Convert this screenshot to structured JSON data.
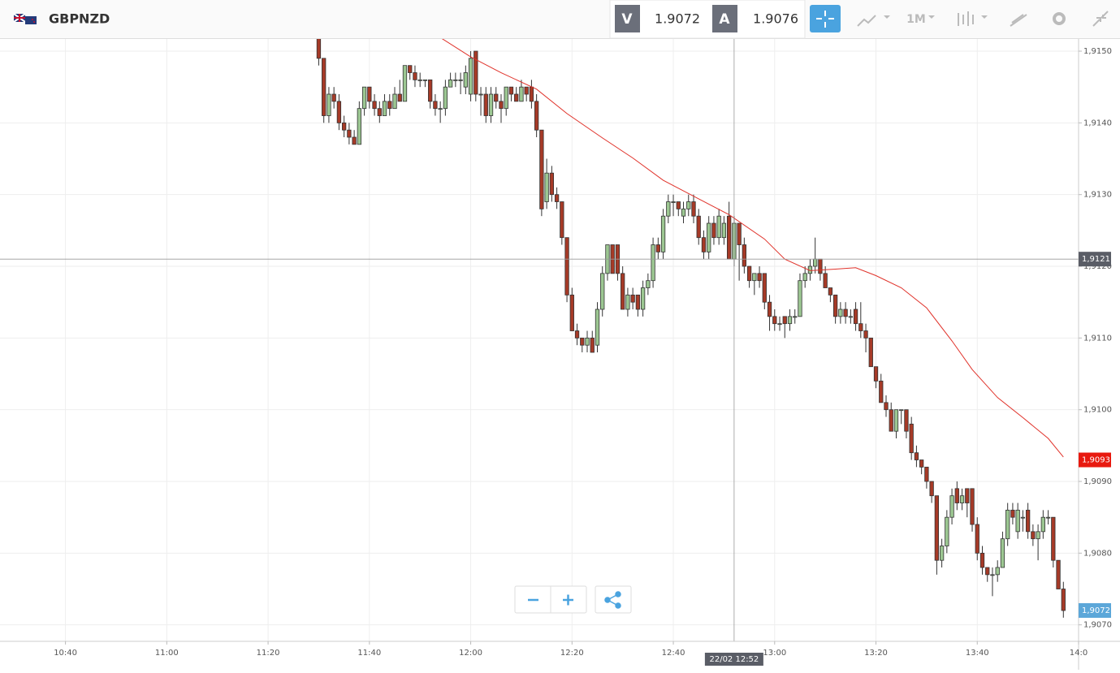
{
  "header": {
    "symbol": "GBPNZD",
    "bid_label": "V",
    "bid": 1.9072,
    "ask_label": "A",
    "ask": 1.9076,
    "timeframe": "1M"
  },
  "chart_data": {
    "type": "candlestick",
    "xlim": [
      629,
      840
    ],
    "xticks": [
      {
        "value": 640,
        "label": "10:40"
      },
      {
        "value": 660,
        "label": "11:00"
      },
      {
        "value": 680,
        "label": "11:20"
      },
      {
        "value": 700,
        "label": "11:40"
      },
      {
        "value": 720,
        "label": "12:00"
      },
      {
        "value": 740,
        "label": "12:20"
      },
      {
        "value": 760,
        "label": "12:40"
      },
      {
        "value": 780,
        "label": "13:00"
      },
      {
        "value": 800,
        "label": "13:20"
      },
      {
        "value": 820,
        "label": "13:40"
      },
      {
        "value": 840,
        "label": "14:0"
      }
    ],
    "ylim": [
      1.90677,
      1.91517
    ],
    "yticks": [
      {
        "value": 1.915,
        "label": "1,9150"
      },
      {
        "value": 1.914,
        "label": "1,9140"
      },
      {
        "value": 1.913,
        "label": "1,9130"
      },
      {
        "value": 1.912,
        "label": "1,9120"
      },
      {
        "value": 1.911,
        "label": "1,9110"
      },
      {
        "value": 1.91,
        "label": "1,9100"
      },
      {
        "value": 1.909,
        "label": "1,9090"
      },
      {
        "value": 1.908,
        "label": "1,9080"
      },
      {
        "value": 1.907,
        "label": "1,9070"
      }
    ],
    "grid": true,
    "up_color": "#9cc792",
    "down_color": "#a63a27",
    "candles": [
      [
        690,
        1.9152,
        1.9153,
        1.9148,
        1.9149
      ],
      [
        691,
        1.9149,
        1.9149,
        1.914,
        1.9141
      ],
      [
        692,
        1.9141,
        1.9145,
        1.914,
        1.9144
      ],
      [
        693,
        1.9144,
        1.9145,
        1.9142,
        1.9143
      ],
      [
        694,
        1.9143,
        1.9144,
        1.9139,
        1.914
      ],
      [
        695,
        1.914,
        1.9141,
        1.9138,
        1.9139
      ],
      [
        696,
        1.9139,
        1.914,
        1.9137,
        1.9138
      ],
      [
        697,
        1.9138,
        1.9139,
        1.9137,
        1.9137
      ],
      [
        698,
        1.9137,
        1.9143,
        1.9137,
        1.9142
      ],
      [
        699,
        1.9142,
        1.9145,
        1.9141,
        1.9145
      ],
      [
        700,
        1.9145,
        1.9145,
        1.9142,
        1.9143
      ],
      [
        701,
        1.9143,
        1.9144,
        1.9141,
        1.9142
      ],
      [
        702,
        1.9142,
        1.9143,
        1.914,
        1.9141
      ],
      [
        703,
        1.9141,
        1.9144,
        1.9141,
        1.9143
      ],
      [
        704,
        1.9143,
        1.9144,
        1.9141,
        1.9142
      ],
      [
        705,
        1.9142,
        1.9145,
        1.9142,
        1.9144
      ],
      [
        706,
        1.9144,
        1.9146,
        1.9143,
        1.9143
      ],
      [
        707,
        1.9143,
        1.9148,
        1.9143,
        1.9148
      ],
      [
        708,
        1.9148,
        1.9148,
        1.9146,
        1.9147
      ],
      [
        709,
        1.9147,
        1.9148,
        1.9145,
        1.9146
      ],
      [
        710,
        1.9146,
        1.9147,
        1.9145,
        1.9146
      ],
      [
        711,
        1.9146,
        1.9146,
        1.9145,
        1.9146
      ],
      [
        712,
        1.9146,
        1.9146,
        1.9142,
        1.9143
      ],
      [
        713,
        1.9143,
        1.9144,
        1.9141,
        1.9142
      ],
      [
        714,
        1.9142,
        1.9143,
        1.914,
        1.9142
      ],
      [
        715,
        1.9142,
        1.9146,
        1.9141,
        1.9145
      ],
      [
        716,
        1.9145,
        1.9147,
        1.9145,
        1.9146
      ],
      [
        717,
        1.9146,
        1.9147,
        1.9145,
        1.9146
      ],
      [
        718,
        1.9146,
        1.9147,
        1.9144,
        1.9146
      ],
      [
        719,
        1.9145,
        1.9148,
        1.9144,
        1.9147
      ],
      [
        720,
        1.9144,
        1.915,
        1.9143,
        1.9149
      ],
      [
        721,
        1.915,
        1.915,
        1.9143,
        1.9144
      ],
      [
        722,
        1.9144,
        1.9145,
        1.9141,
        1.9144
      ],
      [
        723,
        1.9144,
        1.9145,
        1.914,
        1.9141
      ],
      [
        724,
        1.9141,
        1.9145,
        1.914,
        1.9144
      ],
      [
        725,
        1.9144,
        1.9145,
        1.9142,
        1.9143
      ],
      [
        726,
        1.9143,
        1.9144,
        1.914,
        1.9142
      ],
      [
        727,
        1.9142,
        1.9145,
        1.9141,
        1.9145
      ],
      [
        728,
        1.9145,
        1.9145,
        1.9143,
        1.9144
      ],
      [
        729,
        1.9144,
        1.9145,
        1.9143,
        1.9143
      ],
      [
        730,
        1.9143,
        1.9146,
        1.9143,
        1.9145
      ],
      [
        731,
        1.9145,
        1.9145,
        1.9143,
        1.9144
      ],
      [
        732,
        1.9145,
        1.9146,
        1.9142,
        1.9143
      ],
      [
        733,
        1.9143,
        1.9144,
        1.9138,
        1.9139
      ],
      [
        734,
        1.9139,
        1.9139,
        1.9127,
        1.9128
      ],
      [
        735,
        1.9129,
        1.9135,
        1.9128,
        1.9133
      ],
      [
        736,
        1.9133,
        1.9134,
        1.9129,
        1.913
      ],
      [
        737,
        1.913,
        1.9131,
        1.9128,
        1.9129
      ],
      [
        738,
        1.9129,
        1.9129,
        1.9123,
        1.9124
      ],
      [
        739,
        1.9124,
        1.9124,
        1.9115,
        1.9116
      ],
      [
        740,
        1.9116,
        1.9117,
        1.9111,
        1.9111
      ],
      [
        741,
        1.9111,
        1.9112,
        1.9109,
        1.911
      ],
      [
        742,
        1.911,
        1.911,
        1.9108,
        1.9109
      ],
      [
        743,
        1.9109,
        1.9111,
        1.9108,
        1.911
      ],
      [
        744,
        1.911,
        1.9111,
        1.9108,
        1.9108
      ],
      [
        745,
        1.9109,
        1.9115,
        1.9108,
        1.9114
      ],
      [
        746,
        1.9114,
        1.912,
        1.9113,
        1.9119
      ],
      [
        747,
        1.9119,
        1.9123,
        1.9118,
        1.9123
      ],
      [
        748,
        1.9123,
        1.9123,
        1.9119,
        1.9119
      ],
      [
        749,
        1.9123,
        1.9123,
        1.9118,
        1.9119
      ],
      [
        750,
        1.9119,
        1.912,
        1.9114,
        1.9114
      ],
      [
        751,
        1.9114,
        1.9117,
        1.9113,
        1.9116
      ],
      [
        752,
        1.9116,
        1.9117,
        1.9114,
        1.9115
      ],
      [
        753,
        1.9116,
        1.9116,
        1.9113,
        1.9114
      ],
      [
        754,
        1.9114,
        1.9118,
        1.9113,
        1.9117
      ],
      [
        755,
        1.9117,
        1.9119,
        1.9116,
        1.9118
      ],
      [
        756,
        1.9118,
        1.9124,
        1.9117,
        1.9123
      ],
      [
        757,
        1.9123,
        1.9124,
        1.9121,
        1.9122
      ],
      [
        758,
        1.9122,
        1.9128,
        1.9121,
        1.9127
      ],
      [
        759,
        1.9127,
        1.913,
        1.9126,
        1.9129
      ],
      [
        760,
        1.9129,
        1.913,
        1.9127,
        1.9129
      ],
      [
        761,
        1.9129,
        1.9129,
        1.9127,
        1.9128
      ],
      [
        762,
        1.9127,
        1.9129,
        1.9126,
        1.9128
      ],
      [
        763,
        1.9128,
        1.913,
        1.9127,
        1.9129
      ],
      [
        764,
        1.9129,
        1.913,
        1.9126,
        1.9127
      ],
      [
        765,
        1.9127,
        1.9128,
        1.9123,
        1.9124
      ],
      [
        766,
        1.9124,
        1.9125,
        1.9121,
        1.9122
      ],
      [
        767,
        1.9122,
        1.9127,
        1.9121,
        1.9126
      ],
      [
        768,
        1.9126,
        1.9127,
        1.9123,
        1.9124
      ],
      [
        769,
        1.9124,
        1.9128,
        1.9123,
        1.9127
      ],
      [
        770,
        1.9124,
        1.9127,
        1.9123,
        1.9126
      ],
      [
        771,
        1.9127,
        1.9129,
        1.9121,
        1.9121
      ],
      [
        772,
        1.9121,
        1.9127,
        1.912,
        1.9126
      ],
      [
        773,
        1.9126,
        1.9126,
        1.9118,
        1.9123
      ],
      [
        774,
        1.9123,
        1.9124,
        1.9119,
        1.912
      ],
      [
        775,
        1.912,
        1.912,
        1.9117,
        1.9118
      ],
      [
        776,
        1.9118,
        1.9119,
        1.9116,
        1.9119
      ],
      [
        777,
        1.9119,
        1.912,
        1.9117,
        1.9118
      ],
      [
        778,
        1.9119,
        1.9119,
        1.9114,
        1.9115
      ],
      [
        779,
        1.9115,
        1.9116,
        1.9111,
        1.9113
      ],
      [
        780,
        1.9113,
        1.9114,
        1.9111,
        1.9112
      ],
      [
        781,
        1.9112,
        1.9113,
        1.9111,
        1.9112
      ],
      [
        782,
        1.9113,
        1.9113,
        1.911,
        1.9112
      ],
      [
        783,
        1.9112,
        1.9114,
        1.9111,
        1.9113
      ],
      [
        784,
        1.9113,
        1.9114,
        1.9112,
        1.9113
      ],
      [
        785,
        1.9113,
        1.9119,
        1.9113,
        1.9118
      ],
      [
        786,
        1.9118,
        1.912,
        1.9117,
        1.9119
      ],
      [
        787,
        1.9119,
        1.9121,
        1.9118,
        1.912
      ],
      [
        788,
        1.912,
        1.9124,
        1.9119,
        1.9121
      ],
      [
        789,
        1.9121,
        1.9121,
        1.9118,
        1.9119
      ],
      [
        790,
        1.9119,
        1.912,
        1.9117,
        1.9117
      ],
      [
        791,
        1.9117,
        1.9117,
        1.9115,
        1.9116
      ],
      [
        792,
        1.9116,
        1.9116,
        1.9112,
        1.9113
      ],
      [
        793,
        1.9113,
        1.9115,
        1.9112,
        1.9114
      ],
      [
        794,
        1.9114,
        1.9115,
        1.9112,
        1.9113
      ],
      [
        795,
        1.9113,
        1.9114,
        1.9112,
        1.9113
      ],
      [
        796,
        1.9114,
        1.9115,
        1.9111,
        1.9112
      ],
      [
        797,
        1.9112,
        1.9115,
        1.911,
        1.9111
      ],
      [
        798,
        1.9111,
        1.9112,
        1.9108,
        1.911
      ],
      [
        799,
        1.911,
        1.911,
        1.9106,
        1.9106
      ],
      [
        800,
        1.9106,
        1.9106,
        1.9103,
        1.9104
      ],
      [
        801,
        1.9104,
        1.9105,
        1.9101,
        1.9101
      ],
      [
        802,
        1.9101,
        1.9102,
        1.9099,
        1.91
      ],
      [
        803,
        1.91,
        1.9101,
        1.9097,
        1.9097
      ],
      [
        804,
        1.9097,
        1.91,
        1.9096,
        1.91
      ],
      [
        805,
        1.91,
        1.91,
        1.9098,
        1.91
      ],
      [
        806,
        1.91,
        1.91,
        1.9096,
        1.9097
      ],
      [
        807,
        1.9098,
        1.9099,
        1.9093,
        1.9094
      ],
      [
        808,
        1.9094,
        1.9095,
        1.9092,
        1.9093
      ],
      [
        809,
        1.9093,
        1.9093,
        1.9091,
        1.9092
      ],
      [
        810,
        1.9092,
        1.9092,
        1.9089,
        1.909
      ],
      [
        811,
        1.909,
        1.909,
        1.9087,
        1.9088
      ],
      [
        812,
        1.9088,
        1.9088,
        1.9077,
        1.9079
      ],
      [
        813,
        1.9079,
        1.9082,
        1.9078,
        1.9081
      ],
      [
        814,
        1.9081,
        1.9086,
        1.908,
        1.9085
      ],
      [
        815,
        1.9085,
        1.9089,
        1.9084,
        1.9088
      ],
      [
        816,
        1.9089,
        1.909,
        1.9086,
        1.9087
      ],
      [
        817,
        1.9087,
        1.9089,
        1.9086,
        1.9088
      ],
      [
        818,
        1.9089,
        1.9089,
        1.9085,
        1.9087
      ],
      [
        819,
        1.9089,
        1.9089,
        1.9083,
        1.9084
      ],
      [
        820,
        1.9084,
        1.9085,
        1.9079,
        1.908
      ],
      [
        821,
        1.908,
        1.9081,
        1.9077,
        1.9078
      ],
      [
        822,
        1.9078,
        1.9078,
        1.9076,
        1.9077
      ],
      [
        823,
        1.9077,
        1.9078,
        1.9074,
        1.9077
      ],
      [
        824,
        1.9077,
        1.9079,
        1.9076,
        1.9078
      ],
      [
        825,
        1.9078,
        1.9083,
        1.9078,
        1.9082
      ],
      [
        826,
        1.9082,
        1.9087,
        1.9081,
        1.9086
      ],
      [
        827,
        1.9086,
        1.9087,
        1.9084,
        1.9085
      ],
      [
        828,
        1.9083,
        1.9087,
        1.9082,
        1.9086
      ],
      [
        829,
        1.9085,
        1.9086,
        1.9083,
        1.9085
      ],
      [
        830,
        1.9086,
        1.9087,
        1.9082,
        1.9083
      ],
      [
        831,
        1.9083,
        1.9084,
        1.9081,
        1.9082
      ],
      [
        832,
        1.9082,
        1.9084,
        1.9079,
        1.9083
      ],
      [
        833,
        1.9083,
        1.9086,
        1.9082,
        1.9085
      ],
      [
        834,
        1.9085,
        1.9086,
        1.9084,
        1.9085
      ],
      [
        835,
        1.9085,
        1.9085,
        1.9078,
        1.9079
      ],
      [
        836,
        1.9079,
        1.9079,
        1.9075,
        1.9075
      ],
      [
        837,
        1.9075,
        1.9076,
        1.9071,
        1.9072
      ]
    ],
    "moving_average": {
      "color": "#e0322a",
      "x": [
        714,
        720,
        726,
        733,
        739,
        746,
        752,
        758,
        765,
        771,
        778,
        782,
        787,
        792,
        796,
        800,
        805,
        810,
        815,
        819,
        824,
        829,
        834,
        837
      ],
      "values": [
        1.91519,
        1.91492,
        1.9147,
        1.91447,
        1.91413,
        1.91379,
        1.91351,
        1.9132,
        1.91294,
        1.91272,
        1.91238,
        1.9121,
        1.91194,
        1.91196,
        1.91198,
        1.91187,
        1.9117,
        1.91142,
        1.91096,
        1.91056,
        1.91017,
        1.90989,
        1.9096,
        1.90934
      ]
    },
    "crosshair": {
      "x": {
        "value": 772,
        "label": "22/02 12:52"
      },
      "y": {
        "value": 1.9121,
        "label": "1,9121"
      }
    },
    "price_labels": [
      {
        "value": 1.9093,
        "label": "1,9093",
        "color": "#e8190f"
      },
      {
        "value": 1.9072,
        "label": "1,9072",
        "color": "#5ca7d9"
      }
    ]
  }
}
